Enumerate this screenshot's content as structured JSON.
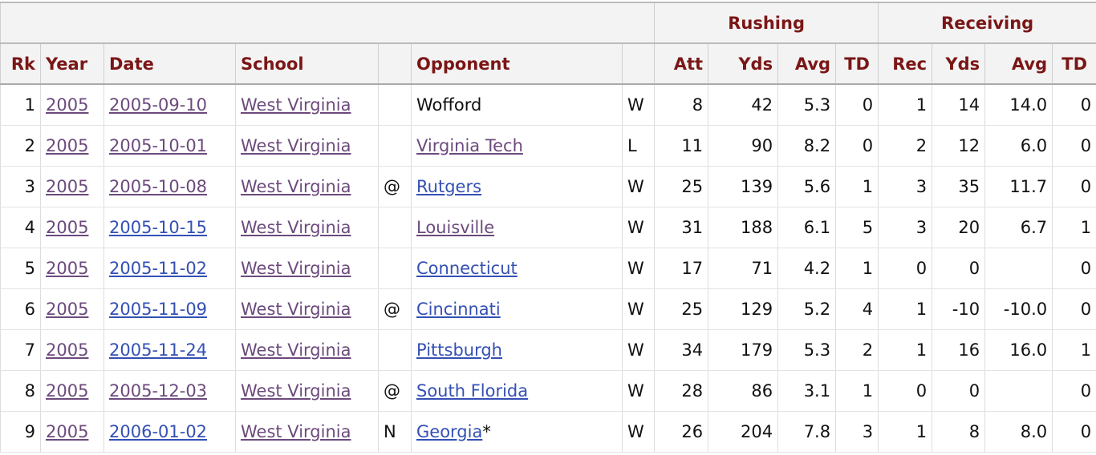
{
  "table": {
    "groups": [
      "Rushing",
      "Receiving"
    ],
    "columns": [
      "Rk",
      "Year",
      "Date",
      "School",
      null,
      "Opponent",
      null,
      "Att",
      "Yds",
      "Avg",
      "TD",
      "Rec",
      "Yds",
      "Avg",
      "TD"
    ],
    "rows": [
      [
        "1",
        "2005",
        "2005-09-10",
        "West Virginia",
        null,
        "Wofford",
        "W",
        "8",
        "42",
        "5.3",
        "0",
        "1",
        "14",
        "14.0",
        "0"
      ],
      [
        "2",
        "2005",
        "2005-10-01",
        "West Virginia",
        null,
        "Virginia Tech",
        "L",
        "11",
        "90",
        "8.2",
        "0",
        "2",
        "12",
        "6.0",
        "0"
      ],
      [
        "3",
        "2005",
        "2005-10-08",
        "West Virginia",
        "@",
        "Rutgers",
        "W",
        "25",
        "139",
        "5.6",
        "1",
        "3",
        "35",
        "11.7",
        "0"
      ],
      [
        "4",
        "2005",
        "2005-10-15",
        "West Virginia",
        null,
        "Louisville",
        "W",
        "31",
        "188",
        "6.1",
        "5",
        "3",
        "20",
        "6.7",
        "1"
      ],
      [
        "5",
        "2005",
        "2005-11-02",
        "West Virginia",
        null,
        "Connecticut",
        "W",
        "17",
        "71",
        "4.2",
        "1",
        "0",
        "0",
        null,
        "0"
      ],
      [
        "6",
        "2005",
        "2005-11-09",
        "West Virginia",
        "@",
        "Cincinnati",
        "W",
        "25",
        "129",
        "5.2",
        "4",
        "1",
        "-10",
        "-10.0",
        "0"
      ],
      [
        "7",
        "2005",
        "2005-11-24",
        "West Virginia",
        null,
        "Pittsburgh",
        "W",
        "34",
        "179",
        "5.3",
        "2",
        "1",
        "16",
        "16.0",
        "1"
      ],
      [
        "8",
        "2005",
        "2005-12-03",
        "West Virginia",
        "@",
        "South Florida",
        "W",
        "28",
        "86",
        "3.1",
        "1",
        "0",
        "0",
        null,
        "0"
      ],
      [
        "9",
        "2005",
        "2006-01-02",
        "West Virginia",
        "N",
        [
          "Georgia",
          "*"
        ],
        "W",
        "26",
        "204",
        "7.8",
        "3",
        "1",
        "8",
        "8.0",
        "0"
      ]
    ]
  }
}
